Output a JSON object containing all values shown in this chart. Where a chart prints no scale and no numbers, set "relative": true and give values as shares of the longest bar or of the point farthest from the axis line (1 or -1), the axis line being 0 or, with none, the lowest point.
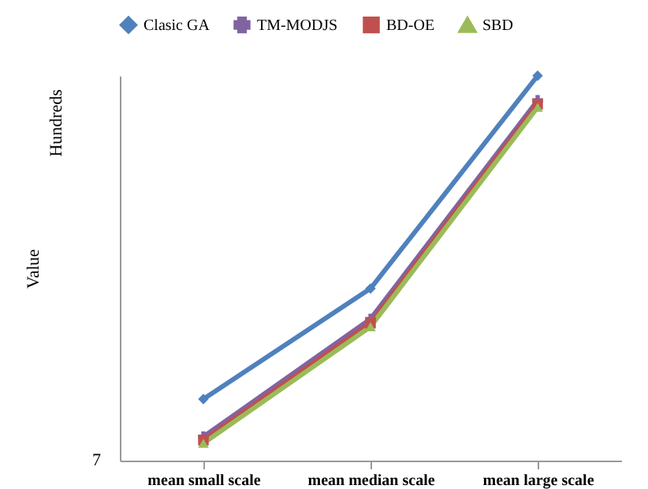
{
  "chart_data": {
    "type": "line",
    "relative": true,
    "ylabel": "Value",
    "annotations": [
      "Hundreds",
      "7"
    ],
    "categories": [
      "mean small scale",
      "mean median scale",
      "mean large scale"
    ],
    "series": [
      {
        "name": "Clasic GA",
        "color": "#4f81bd",
        "marker": "diamond",
        "values": [
          0.16,
          0.447,
          1
        ]
      },
      {
        "name": "TM-MODJS",
        "color": "#8064a2",
        "marker": "cross",
        "values": [
          0.062,
          0.368,
          0.936
        ]
      },
      {
        "name": "BD-OE",
        "color": "#c0504d",
        "marker": "square",
        "values": [
          0.053,
          0.357,
          0.926
        ]
      },
      {
        "name": "SBD",
        "color": "#9bbb59",
        "marker": "triangle",
        "values": [
          0.045,
          0.348,
          0.918
        ]
      }
    ],
    "legend": "top",
    "grid": false
  }
}
